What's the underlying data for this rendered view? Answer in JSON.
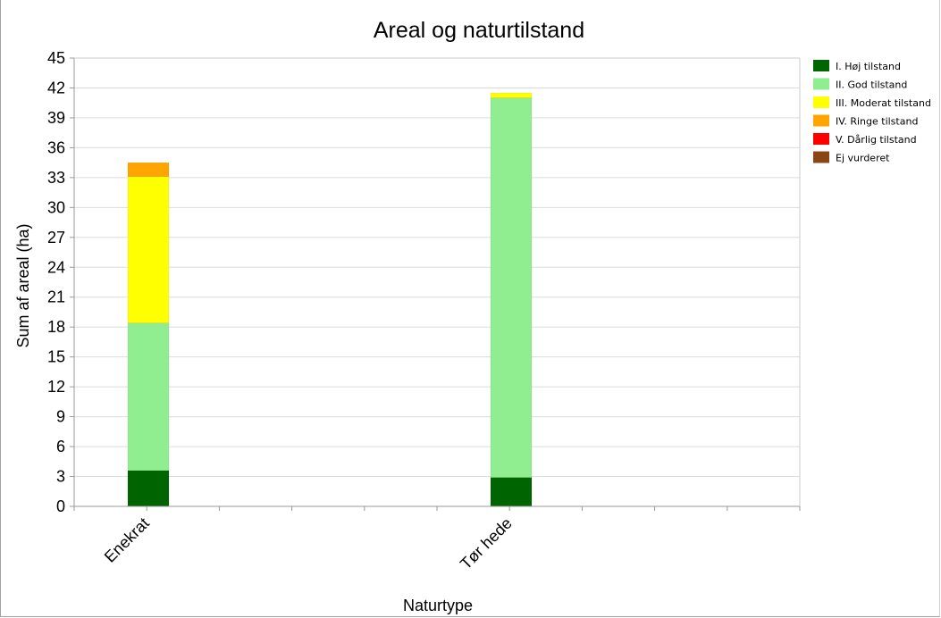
{
  "chart_data": {
    "type": "bar",
    "stacked": true,
    "title": "Areal og naturtilstand",
    "xlabel": "Naturtype",
    "ylabel": "Sum af areal (ha)",
    "ylim": [
      0,
      45
    ],
    "yticks": [
      0,
      3,
      6,
      9,
      12,
      15,
      18,
      21,
      24,
      27,
      30,
      33,
      36,
      39,
      42,
      45
    ],
    "grid": true,
    "legend_position": "right",
    "categories": [
      "Enekrat",
      "Tør hede"
    ],
    "series": [
      {
        "name": "I. Høj tilstand",
        "color": "#006400",
        "values": [
          3.6,
          2.9
        ]
      },
      {
        "name": "II. God tilstand",
        "color": "#90ee90",
        "values": [
          14.8,
          38.1
        ]
      },
      {
        "name": "III. Moderat tilstand",
        "color": "#ffff00",
        "values": [
          14.7,
          0.5
        ]
      },
      {
        "name": "IV. Ringe tilstand",
        "color": "#ffa500",
        "values": [
          1.4,
          0
        ]
      },
      {
        "name": "V. Dårlig tilstand",
        "color": "#ff0000",
        "values": [
          0,
          0
        ]
      },
      {
        "name": "Ej vurderet",
        "color": "#8b4513",
        "values": [
          0,
          0
        ]
      }
    ]
  }
}
